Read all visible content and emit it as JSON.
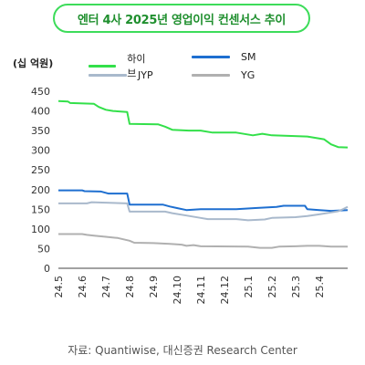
{
  "title": "엔터 4사 2025년 영업이익 컨센서스 추이",
  "unit_label": "(십 억원)",
  "source": "자료: Quantiwise, 대신증권 Research Center",
  "chart_data": {
    "type": "line",
    "ylim": [
      0,
      450
    ],
    "yticks": [
      0,
      50,
      100,
      150,
      200,
      250,
      300,
      350,
      400,
      450
    ],
    "x_labels": [
      "24.5",
      "24.6",
      "24.7",
      "24.8",
      "24.9",
      "24.10",
      "24.11",
      "24.12",
      "25.1",
      "25.2",
      "25.3",
      "25.4"
    ],
    "x_range": [
      0,
      12.2
    ],
    "legend_placement": "top",
    "grid": false,
    "series": [
      {
        "name": "하이브",
        "color": "#33e04a",
        "points": [
          [
            0,
            425
          ],
          [
            0.4,
            424
          ],
          [
            0.5,
            420
          ],
          [
            1.5,
            418
          ],
          [
            1.7,
            410
          ],
          [
            2.0,
            403
          ],
          [
            2.3,
            400
          ],
          [
            2.9,
            397
          ],
          [
            3.0,
            367
          ],
          [
            4.2,
            366
          ],
          [
            4.5,
            360
          ],
          [
            4.8,
            352
          ],
          [
            5.5,
            350
          ],
          [
            6.0,
            350
          ],
          [
            6.5,
            345
          ],
          [
            7.5,
            345
          ],
          [
            8.2,
            338
          ],
          [
            8.6,
            342
          ],
          [
            9.0,
            338
          ],
          [
            10.5,
            335
          ],
          [
            11.2,
            328
          ],
          [
            11.5,
            315
          ],
          [
            11.8,
            308
          ],
          [
            12.2,
            307
          ]
        ]
      },
      {
        "name": "SM",
        "color": "#1e6fd0",
        "points": [
          [
            0,
            198
          ],
          [
            1.0,
            198
          ],
          [
            1.1,
            196
          ],
          [
            1.8,
            195
          ],
          [
            2.1,
            190
          ],
          [
            2.9,
            190
          ],
          [
            3.0,
            162
          ],
          [
            4.4,
            162
          ],
          [
            4.7,
            157
          ],
          [
            5.0,
            153
          ],
          [
            5.4,
            148
          ],
          [
            6.0,
            150
          ],
          [
            7.5,
            150
          ],
          [
            8.3,
            153
          ],
          [
            9.2,
            156
          ],
          [
            9.5,
            159
          ],
          [
            10.4,
            159
          ],
          [
            10.5,
            150
          ],
          [
            11.0,
            148
          ],
          [
            11.5,
            146
          ],
          [
            12.2,
            148
          ]
        ]
      },
      {
        "name": "JYP",
        "color": "#a9b9cc",
        "points": [
          [
            0,
            165
          ],
          [
            1.2,
            165
          ],
          [
            1.4,
            168
          ],
          [
            2.9,
            165
          ],
          [
            3.0,
            144
          ],
          [
            4.5,
            144
          ],
          [
            4.8,
            140
          ],
          [
            5.4,
            134
          ],
          [
            6.0,
            128
          ],
          [
            6.3,
            125
          ],
          [
            7.5,
            125
          ],
          [
            8.0,
            122
          ],
          [
            8.7,
            124
          ],
          [
            9.0,
            128
          ],
          [
            10.0,
            130
          ],
          [
            10.5,
            133
          ],
          [
            11.0,
            137
          ],
          [
            11.5,
            142
          ],
          [
            11.8,
            145
          ],
          [
            12.0,
            150
          ],
          [
            12.2,
            156
          ]
        ]
      },
      {
        "name": "YG",
        "color": "#b0b0b0",
        "points": [
          [
            0,
            87
          ],
          [
            1.0,
            87
          ],
          [
            1.2,
            85
          ],
          [
            1.5,
            83
          ],
          [
            2.0,
            80
          ],
          [
            2.5,
            77
          ],
          [
            3.0,
            70
          ],
          [
            3.2,
            65
          ],
          [
            4.0,
            64
          ],
          [
            4.7,
            62
          ],
          [
            5.2,
            60
          ],
          [
            5.4,
            57
          ],
          [
            5.7,
            59
          ],
          [
            6.0,
            56
          ],
          [
            8.0,
            55
          ],
          [
            8.5,
            52
          ],
          [
            9.0,
            52
          ],
          [
            9.3,
            55
          ],
          [
            10.0,
            56
          ],
          [
            10.5,
            57
          ],
          [
            11.0,
            57
          ],
          [
            11.5,
            55
          ],
          [
            12.2,
            55
          ]
        ]
      }
    ]
  }
}
